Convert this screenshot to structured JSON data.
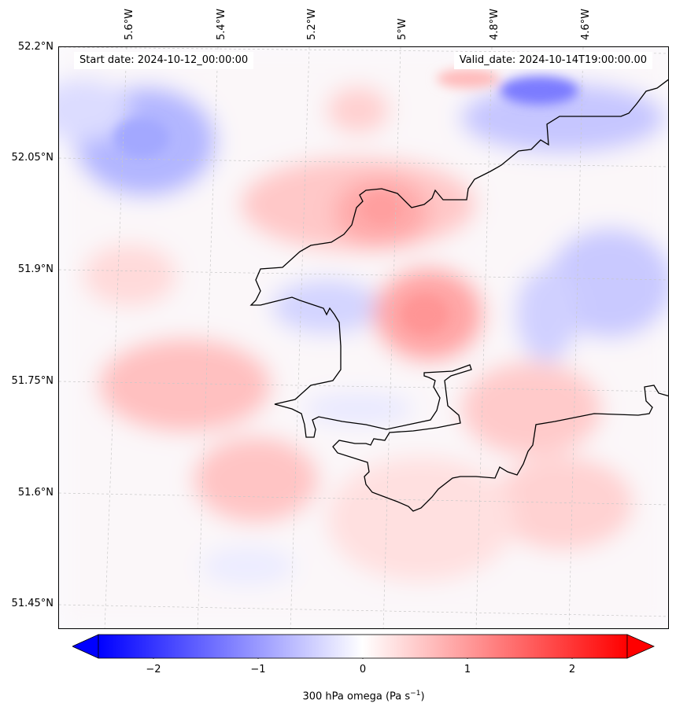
{
  "map": {
    "variable": "300 hPa omega",
    "colormap": [
      "#0000ff",
      "#ffffff",
      "#ff0000"
    ],
    "longitude_labels": [
      "5.6°W",
      "5.4°W",
      "5.2°W",
      "5°W",
      "4.8°W",
      "4.6°W"
    ],
    "latitude_labels": [
      "52.2°N",
      "52.05°N",
      "51.9°N",
      "51.75°N",
      "51.6°N",
      "51.45°N"
    ]
  },
  "header": {
    "start_date": "Start date: 2024-10-12_00:00:00",
    "valid_date": "Valid_date: 2024-10-14T19:00:00.00"
  },
  "colorbar": {
    "ticks": [
      "−2",
      "−1",
      "0",
      "1",
      "2"
    ],
    "label_main": "300 hPa omega (Pa s",
    "label_exp": "−1",
    "label_end": ")",
    "range": [
      -2.6,
      2.6
    ]
  }
}
